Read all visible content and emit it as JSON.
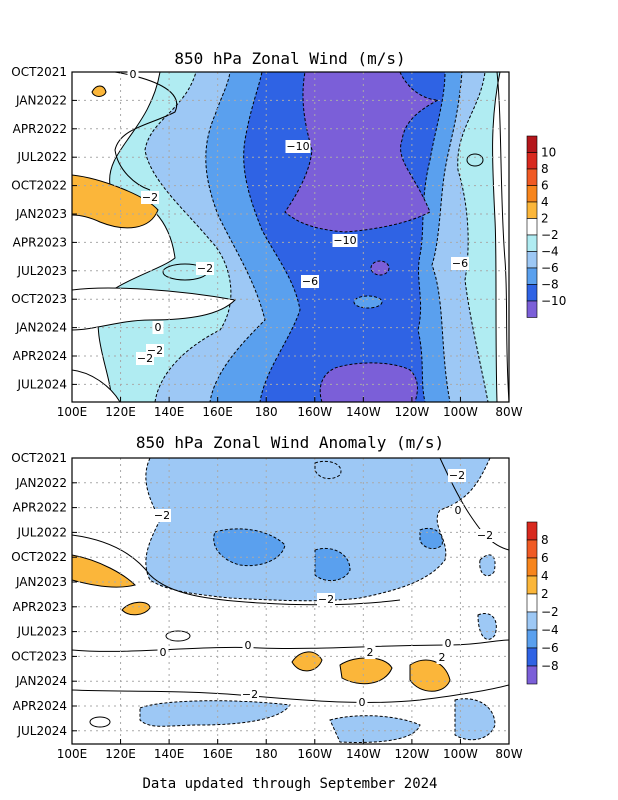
{
  "footer": "Data updated through September 2024",
  "colors": {
    "pos4": "#fbb63a",
    "pos6": "#f7851d",
    "pos8": "#f05a24",
    "pos10": "#d8291e",
    "pos12": "#b4161b",
    "neutral": "#ffffff",
    "neg2": "#b0ecf2",
    "neg4": "#9dc8f5",
    "neg6": "#5aa0ee",
    "neg8": "#2f63e4",
    "neg10": "#7b5fd8",
    "dotted_grid": "#a9a9a9"
  },
  "chart_data": [
    {
      "type": "heatmap",
      "title": "850 hPa Zonal Wind (m/s)",
      "x_tick_labels": [
        "100E",
        "120E",
        "140E",
        "160E",
        "180",
        "160W",
        "140W",
        "120W",
        "100W",
        "80W"
      ],
      "y_tick_labels": [
        "OCT2021",
        "JAN2022",
        "APR2022",
        "JUL2022",
        "OCT2022",
        "JAN2023",
        "APR2023",
        "JUL2023",
        "OCT2023",
        "JAN2024",
        "APR2024",
        "JUL2024"
      ],
      "x_range": [
        "100E",
        "80W"
      ],
      "y_range": [
        "OCT2021",
        "SEP2024"
      ],
      "grid": "dotted",
      "colorbar_labels": [
        "10",
        "8",
        "6",
        "4",
        "2",
        "−2",
        "−4",
        "−6",
        "−8",
        "−10"
      ],
      "contour_labels": [
        "0",
        "−2",
        "−10",
        "−2",
        "−10",
        "−6",
        "−2",
        "−6",
        "0",
        "−2"
      ],
      "approx_values": [
        [
          -1,
          -2,
          -4,
          -6,
          -8,
          -10,
          -11,
          -10,
          -8,
          -4,
          -2
        ],
        [
          -1,
          -2,
          -5,
          -7,
          -9,
          -11,
          -12,
          -11,
          -8,
          -5,
          -2
        ],
        [
          -1,
          -3,
          -5,
          -8,
          -10,
          -11,
          -12,
          -11,
          -8,
          -5,
          -3
        ],
        [
          0,
          -3,
          -6,
          -8,
          -10,
          -11,
          -12,
          -11,
          -8,
          -5,
          -3
        ],
        [
          3,
          -2,
          -5,
          -8,
          -9,
          -10,
          -11,
          -10,
          -8,
          -4,
          -2
        ],
        [
          4,
          -1,
          -4,
          -7,
          -9,
          -10,
          -11,
          -10,
          -7,
          -4,
          -2
        ],
        [
          -1,
          -2,
          -4,
          -6,
          -8,
          -9,
          -10,
          -9,
          -7,
          -4,
          -2
        ],
        [
          -1,
          -3,
          -4,
          -5,
          -6,
          -8,
          -9,
          -8,
          -6,
          -4,
          -2
        ],
        [
          -1,
          -2,
          -3,
          -5,
          -7,
          -7,
          -8,
          -7,
          -6,
          -4,
          -1
        ],
        [
          -1,
          -2,
          -4,
          -6,
          -7,
          -8,
          -9,
          -8,
          -6,
          -4,
          -2
        ],
        [
          -2,
          -3,
          -5,
          -7,
          -8,
          -9,
          -10,
          -9,
          -7,
          -4,
          -2
        ],
        [
          -1,
          -2,
          -4,
          -6,
          -8,
          -10,
          -11,
          -10,
          -7,
          -4,
          -2
        ]
      ]
    },
    {
      "type": "heatmap",
      "title": "850 hPa Zonal Wind Anomaly (m/s)",
      "x_tick_labels": [
        "100E",
        "120E",
        "140E",
        "160E",
        "180",
        "160W",
        "140W",
        "120W",
        "100W",
        "80W"
      ],
      "y_tick_labels": [
        "OCT2021",
        "JAN2022",
        "APR2022",
        "JUL2022",
        "OCT2022",
        "JAN2023",
        "APR2023",
        "JUL2023",
        "OCT2023",
        "JAN2024",
        "APR2024",
        "JUL2024"
      ],
      "x_range": [
        "100E",
        "80W"
      ],
      "y_range": [
        "OCT2021",
        "SEP2024"
      ],
      "grid": "dotted",
      "colorbar_labels": [
        "8",
        "6",
        "4",
        "2",
        "−2",
        "−4",
        "−6",
        "−8"
      ],
      "contour_labels": [
        "−2",
        "0",
        "−2",
        "−2",
        "−2",
        "0",
        "0",
        "2",
        "2",
        "0",
        "−2",
        "0"
      ],
      "approx_values": [
        [
          0,
          -1,
          -2,
          -2,
          -3,
          -3,
          -3,
          -2,
          -1,
          -1,
          0
        ],
        [
          0,
          -1,
          -2,
          -3,
          -3,
          -3,
          -3,
          -2,
          -1,
          -1,
          0
        ],
        [
          0,
          -1,
          -2,
          -3,
          -3,
          -3,
          -3,
          -3,
          -2,
          -1,
          0
        ],
        [
          0,
          -1,
          -3,
          -4,
          -4,
          -4,
          -4,
          -3,
          -2,
          -1,
          0
        ],
        [
          2,
          -1,
          -3,
          -4,
          -4,
          -4,
          -4,
          -3,
          -2,
          -1,
          0
        ],
        [
          3,
          0,
          -2,
          -3,
          -4,
          -4,
          -3,
          -3,
          -2,
          -1,
          0
        ],
        [
          0,
          2,
          0,
          -1,
          -2,
          -2,
          -2,
          -1,
          -1,
          0,
          0
        ],
        [
          0,
          0,
          1,
          0,
          -1,
          -1,
          -1,
          -1,
          0,
          0,
          0
        ],
        [
          0,
          0,
          0,
          0,
          0,
          1,
          2,
          2,
          2,
          0,
          0
        ],
        [
          0,
          0,
          0,
          -1,
          -1,
          -1,
          0,
          1,
          2,
          0,
          -1
        ],
        [
          0,
          -1,
          -2,
          -2,
          -2,
          -1,
          -1,
          -1,
          -1,
          -1,
          -1
        ],
        [
          0,
          -1,
          -2,
          -2,
          -1,
          -1,
          -1,
          -1,
          -1,
          -1,
          0
        ]
      ]
    }
  ]
}
